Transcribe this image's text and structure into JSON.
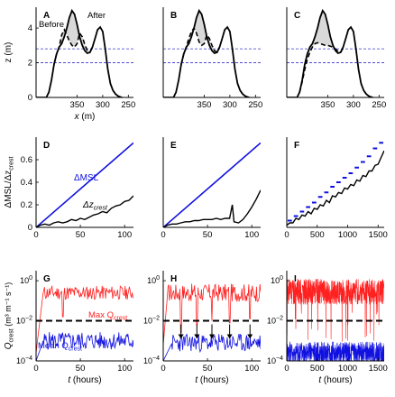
{
  "colors": {
    "blue": "#1010e0",
    "red": "#ff2020",
    "black": "#000000",
    "fill": "#d9d9d9",
    "dashed_ref": "#3333cc"
  },
  "chart_data": [
    {
      "panel": "A",
      "type": "line",
      "xlabel": "x (m)",
      "ylabel": "z (m)",
      "xlim": [
        430,
        240
      ],
      "ylim": [
        0,
        5.2
      ],
      "xticks": [
        "350",
        "300",
        "250"
      ],
      "yticks": [
        "0",
        "2",
        "4"
      ],
      "annotations": [
        "Before",
        "After"
      ],
      "hlines": [
        2.0,
        2.8
      ],
      "series": [
        {
          "style": "solid",
          "x": [
            430,
            410,
            405,
            400,
            395,
            390,
            385,
            380,
            375,
            370,
            365,
            360,
            355,
            350,
            345,
            340,
            335,
            330,
            325,
            320,
            315,
            310,
            305,
            300,
            295,
            290,
            285,
            280,
            275,
            270,
            265,
            262
          ],
          "y": [
            0,
            0,
            0.3,
            1.0,
            1.9,
            2.5,
            2.9,
            3.1,
            3.5,
            4.0,
            4.6,
            5.0,
            4.8,
            4.2,
            3.5,
            3.0,
            2.7,
            2.55,
            2.6,
            2.9,
            3.4,
            3.9,
            4.05,
            3.8,
            2.8,
            1.6,
            0.8,
            0.4,
            0.2,
            0.08,
            0.02,
            0
          ]
        },
        {
          "style": "dashed",
          "x": [
            395,
            390,
            385,
            380,
            375,
            370,
            365,
            360,
            355,
            350,
            345,
            340,
            335,
            330,
            325,
            320
          ],
          "y": [
            1.9,
            2.5,
            2.9,
            3.6,
            3.9,
            3.6,
            3.25,
            3.0,
            2.9,
            3.1,
            3.7,
            3.5,
            3.05,
            2.7,
            2.6,
            2.9
          ]
        }
      ]
    },
    {
      "panel": "B",
      "type": "line",
      "xlim": [
        430,
        240
      ],
      "ylim": [
        0,
        5.2
      ],
      "xticks": [
        "350",
        "300",
        "250"
      ],
      "yticks": [],
      "hlines": [
        2.0,
        2.8
      ],
      "series": [
        {
          "style": "solid",
          "x": [
            430,
            410,
            405,
            400,
            395,
            390,
            385,
            380,
            375,
            370,
            365,
            360,
            355,
            350,
            345,
            340,
            335,
            330,
            325,
            320,
            315,
            310,
            305,
            300,
            295,
            290,
            285,
            280,
            275,
            270,
            265,
            262
          ],
          "y": [
            0,
            0,
            0.3,
            1.0,
            1.9,
            2.5,
            2.9,
            3.1,
            3.5,
            4.0,
            4.6,
            5.0,
            4.8,
            4.2,
            3.5,
            3.0,
            2.7,
            2.55,
            2.6,
            2.9,
            3.4,
            3.9,
            4.05,
            3.8,
            2.8,
            1.6,
            0.8,
            0.4,
            0.2,
            0.08,
            0.02,
            0
          ]
        },
        {
          "style": "dashed",
          "x": [
            395,
            390,
            385,
            380,
            375,
            370,
            365,
            360,
            355,
            350,
            345,
            340,
            335,
            330,
            325,
            320
          ],
          "y": [
            1.9,
            2.5,
            2.9,
            3.4,
            3.8,
            4.0,
            3.7,
            3.2,
            3.0,
            3.1,
            3.6,
            3.4,
            3.0,
            2.7,
            2.6,
            2.9
          ]
        }
      ]
    },
    {
      "panel": "C",
      "type": "line",
      "xlim": [
        430,
        240
      ],
      "ylim": [
        0,
        5.2
      ],
      "xticks": [
        "350",
        "300",
        "250"
      ],
      "yticks": [],
      "hlines": [
        2.0,
        2.8
      ],
      "series": [
        {
          "style": "solid",
          "x": [
            430,
            410,
            405,
            400,
            395,
            390,
            385,
            380,
            375,
            370,
            365,
            360,
            355,
            350,
            345,
            340,
            335,
            330,
            325,
            320,
            315,
            310,
            305,
            300,
            295,
            290,
            285,
            280,
            275,
            270,
            265,
            262
          ],
          "y": [
            0,
            0,
            0.3,
            1.0,
            1.9,
            2.5,
            2.9,
            3.1,
            3.5,
            4.0,
            4.6,
            5.0,
            4.8,
            4.2,
            3.5,
            3.0,
            2.7,
            2.55,
            2.6,
            2.9,
            3.4,
            3.9,
            4.05,
            3.8,
            2.8,
            1.6,
            0.8,
            0.4,
            0.2,
            0.08,
            0.02,
            0
          ]
        },
        {
          "style": "dashed",
          "x": [
            405,
            400,
            395,
            390,
            385,
            380,
            375,
            370,
            365,
            360,
            355,
            350,
            345,
            340,
            335,
            330,
            325,
            320
          ],
          "y": [
            0.3,
            0.9,
            1.6,
            2.2,
            2.6,
            2.9,
            3.1,
            3.15,
            3.1,
            3.05,
            3.0,
            3.0,
            2.95,
            2.9,
            2.8,
            2.65,
            2.6,
            2.85
          ]
        }
      ]
    },
    {
      "panel": "D",
      "type": "line",
      "xlabel": "",
      "ylabel": "ΔMSL/Δz_crest",
      "xlim": [
        0,
        110
      ],
      "ylim": [
        0,
        0.8
      ],
      "xticks": [
        "0",
        "50",
        "100"
      ],
      "yticks": [
        "0",
        "0.2",
        "0.4",
        "0.6"
      ],
      "annotations": [
        "ΔMSL",
        "Δz_crest"
      ],
      "series": [
        {
          "name": "ΔMSL",
          "color": "blue",
          "x": [
            0,
            110
          ],
          "y": [
            0,
            0.75
          ]
        },
        {
          "name": "Δz_crest",
          "color": "black",
          "x": [
            0,
            5,
            10,
            15,
            20,
            25,
            30,
            35,
            40,
            45,
            50,
            55,
            60,
            65,
            70,
            75,
            80,
            85,
            90,
            95,
            100,
            105,
            110
          ],
          "y": [
            0,
            0.02,
            0.03,
            0.02,
            0.04,
            0.05,
            0.04,
            0.05,
            0.07,
            0.06,
            0.08,
            0.07,
            0.09,
            0.11,
            0.12,
            0.14,
            0.13,
            0.17,
            0.19,
            0.2,
            0.23,
            0.24,
            0.28
          ]
        }
      ]
    },
    {
      "panel": "E",
      "type": "line",
      "xlim": [
        0,
        110
      ],
      "ylim": [
        0,
        0.8
      ],
      "xticks": [
        "0",
        "50",
        "100"
      ],
      "yticks": [],
      "series": [
        {
          "color": "blue",
          "x": [
            0,
            110
          ],
          "y": [
            0,
            0.75
          ]
        },
        {
          "color": "black",
          "x": [
            0,
            5,
            10,
            15,
            20,
            25,
            30,
            35,
            40,
            45,
            50,
            55,
            60,
            65,
            70,
            75,
            78,
            80,
            85,
            90,
            95,
            100,
            105,
            110
          ],
          "y": [
            0,
            0.02,
            0.03,
            0.03,
            0.04,
            0.05,
            0.05,
            0.06,
            0.06,
            0.07,
            0.07,
            0.07,
            0.08,
            0.07,
            0.08,
            0.08,
            0.2,
            0.05,
            0.04,
            0.07,
            0.12,
            0.18,
            0.25,
            0.33
          ]
        }
      ]
    },
    {
      "panel": "F",
      "type": "line",
      "xlim": [
        0,
        1600
      ],
      "ylim": [
        0,
        0.8
      ],
      "xticks": [
        "0",
        "500",
        "1000",
        "1500"
      ],
      "yticks": [],
      "series": [
        {
          "color": "blue",
          "style": "stepped-dashes",
          "x": [
            0,
            100,
            200,
            300,
            400,
            500,
            600,
            700,
            800,
            900,
            1000,
            1100,
            1200,
            1300,
            1400,
            1500,
            1600
          ],
          "y": [
            0.02,
            0.06,
            0.1,
            0.14,
            0.18,
            0.22,
            0.27,
            0.31,
            0.36,
            0.4,
            0.44,
            0.48,
            0.53,
            0.58,
            0.63,
            0.7,
            0.75
          ]
        },
        {
          "color": "black",
          "x": [
            0,
            50,
            100,
            150,
            200,
            250,
            300,
            350,
            400,
            450,
            500,
            550,
            600,
            650,
            700,
            750,
            800,
            850,
            900,
            950,
            1000,
            1050,
            1100,
            1150,
            1200,
            1250,
            1300,
            1350,
            1400,
            1450,
            1500,
            1550,
            1600
          ],
          "y": [
            0.02,
            0.04,
            0.04,
            0.08,
            0.07,
            0.11,
            0.1,
            0.14,
            0.12,
            0.17,
            0.16,
            0.2,
            0.19,
            0.24,
            0.22,
            0.28,
            0.27,
            0.31,
            0.3,
            0.35,
            0.34,
            0.38,
            0.37,
            0.42,
            0.41,
            0.46,
            0.45,
            0.5,
            0.5,
            0.55,
            0.56,
            0.62,
            0.68
          ]
        }
      ]
    },
    {
      "panel": "G",
      "type": "line",
      "xlabel": "t (hours)",
      "ylabel": "Q_crest (m³ m⁻¹ s⁻¹)",
      "xlim": [
        0,
        110
      ],
      "ylim_log10": [
        -4,
        0.5
      ],
      "xticks": [
        "0",
        "50",
        "100"
      ],
      "yticks": [
        "10^-4",
        "10^-2",
        "10^0"
      ],
      "annotations": [
        "Max Q_crest",
        "Mean Q_crest"
      ],
      "hline_log10": -2,
      "series": [
        {
          "name": "Max Q_crest",
          "color": "red",
          "pattern": "noise",
          "seed": 11,
          "base": -0.6,
          "amp": 0.35,
          "start": [
            -3.6,
            8
          ],
          "dips": [
            [
              30,
              -1.8
            ]
          ]
        },
        {
          "name": "Mean Q_crest",
          "color": "blue",
          "pattern": "noise",
          "seed": 5,
          "base": -3.0,
          "amp": 0.45,
          "start": [
            -4.0,
            8
          ],
          "dips": []
        }
      ]
    },
    {
      "panel": "H",
      "type": "line",
      "xlabel": "t (hours)",
      "xlim": [
        0,
        110
      ],
      "ylim_log10": [
        -4,
        0.5
      ],
      "xticks": [
        "0",
        "50",
        "100"
      ],
      "yticks": [
        "10^-4",
        "10^-2",
        "10^0"
      ],
      "hline_log10": -2,
      "arrows_x": [
        20,
        38,
        55,
        75,
        98
      ],
      "series": [
        {
          "color": "red",
          "pattern": "noise",
          "seed": 17,
          "base": -0.6,
          "amp": 0.45,
          "start": [
            -3.2,
            5
          ],
          "dips": [
            [
              20,
              -2.6
            ],
            [
              38,
              -2.2
            ],
            [
              55,
              -2.0
            ],
            [
              75,
              -2.1
            ],
            [
              98,
              -1.9
            ]
          ]
        },
        {
          "color": "blue",
          "pattern": "noise",
          "seed": 23,
          "base": -3.1,
          "amp": 0.45,
          "start": [
            -4.0,
            10
          ],
          "dips": []
        }
      ]
    },
    {
      "panel": "I",
      "type": "line",
      "xlabel": "t (hours)",
      "xlim": [
        0,
        1600
      ],
      "ylim_log10": [
        -4,
        0.5
      ],
      "xticks": [
        "0",
        "500",
        "1000",
        "1500"
      ],
      "yticks": [
        "10^-4",
        "10^-2",
        "10^0"
      ],
      "hline_log10": -2,
      "series": [
        {
          "color": "red",
          "pattern": "dense",
          "seed": 31,
          "base": -0.55,
          "amp": 0.4,
          "start": [
            -2.0,
            0
          ],
          "dips": []
        },
        {
          "color": "blue",
          "pattern": "dense",
          "seed": 41,
          "base": -3.6,
          "amp": 0.35,
          "start": [
            -4.0,
            0
          ],
          "dips": []
        }
      ]
    }
  ]
}
